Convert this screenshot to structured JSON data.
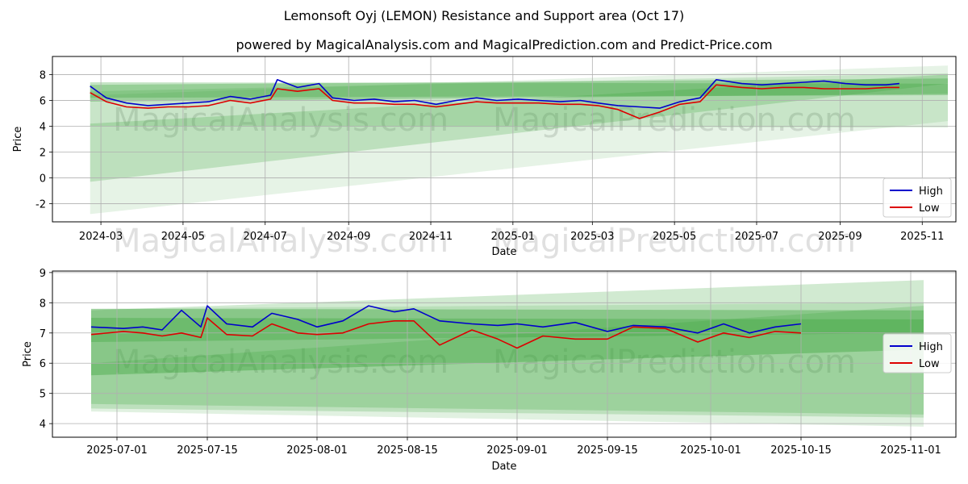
{
  "figure": {
    "title": "Lemonsoft Oyj (LEMON) Resistance and Support area (Oct 17)",
    "subtitle": "powered by MagicalAnalysis.com and MagicalPrediction.com and Predict-Price.com",
    "watermarks": [
      "MagicalAnalysis.com",
      "MagicalPrediction.com"
    ]
  },
  "colors": {
    "high": "#0000cc",
    "low": "#dd0000",
    "band": "#2e9e2e",
    "grid": "#b0b0b0"
  },
  "chart_data": [
    {
      "type": "line",
      "xlabel": "Date",
      "ylabel": "Price",
      "xlim": [
        "2024-01-25",
        "2025-11-26"
      ],
      "ylim": [
        -3.4,
        9.4
      ],
      "xticks": [
        "2024-03",
        "2024-05",
        "2024-07",
        "2024-09",
        "2024-11",
        "2025-01",
        "2025-03",
        "2025-05",
        "2025-07",
        "2025-09",
        "2025-11"
      ],
      "yticks": [
        -2,
        0,
        2,
        4,
        6,
        8
      ],
      "grid": true,
      "legend": {
        "position": "lower-right",
        "entries": [
          "High",
          "Low"
        ]
      },
      "series": [
        {
          "name": "High",
          "x": [
            "2024-02-22",
            "2024-03-05",
            "2024-03-20",
            "2024-04-05",
            "2024-04-20",
            "2024-05-05",
            "2024-05-20",
            "2024-06-05",
            "2024-06-20",
            "2024-07-05",
            "2024-07-10",
            "2024-07-25",
            "2024-08-10",
            "2024-08-20",
            "2024-09-05",
            "2024-09-20",
            "2024-10-05",
            "2024-10-20",
            "2024-11-05",
            "2024-11-20",
            "2024-12-05",
            "2024-12-20",
            "2025-01-05",
            "2025-01-20",
            "2025-02-05",
            "2025-02-20",
            "2025-03-05",
            "2025-03-20",
            "2025-04-05",
            "2025-04-20",
            "2025-05-05",
            "2025-05-20",
            "2025-06-01",
            "2025-06-20",
            "2025-07-05",
            "2025-07-20",
            "2025-08-05",
            "2025-08-20",
            "2025-09-05",
            "2025-09-20",
            "2025-10-05",
            "2025-10-15"
          ],
          "values": [
            7.1,
            6.2,
            5.8,
            5.6,
            5.7,
            5.8,
            5.9,
            6.3,
            6.1,
            6.4,
            7.6,
            7.0,
            7.3,
            6.2,
            6.0,
            6.1,
            5.9,
            6.0,
            5.7,
            6.0,
            6.2,
            6.0,
            6.1,
            6.0,
            5.9,
            6.0,
            5.8,
            5.6,
            5.5,
            5.4,
            5.9,
            6.2,
            7.6,
            7.3,
            7.2,
            7.3,
            7.4,
            7.5,
            7.3,
            7.2,
            7.2,
            7.3
          ]
        },
        {
          "name": "Low",
          "x": [
            "2024-02-22",
            "2024-03-05",
            "2024-03-20",
            "2024-04-05",
            "2024-04-20",
            "2024-05-05",
            "2024-05-20",
            "2024-06-05",
            "2024-06-20",
            "2024-07-05",
            "2024-07-10",
            "2024-07-25",
            "2024-08-10",
            "2024-08-20",
            "2024-09-05",
            "2024-09-20",
            "2024-10-05",
            "2024-10-20",
            "2024-11-05",
            "2024-11-20",
            "2024-12-05",
            "2024-12-20",
            "2025-01-05",
            "2025-01-20",
            "2025-02-05",
            "2025-02-20",
            "2025-03-05",
            "2025-03-20",
            "2025-04-05",
            "2025-04-20",
            "2025-05-05",
            "2025-05-20",
            "2025-06-01",
            "2025-06-20",
            "2025-07-05",
            "2025-07-20",
            "2025-08-05",
            "2025-08-20",
            "2025-09-05",
            "2025-09-20",
            "2025-10-05",
            "2025-10-15"
          ],
          "values": [
            6.6,
            5.9,
            5.5,
            5.4,
            5.5,
            5.5,
            5.6,
            6.0,
            5.8,
            6.1,
            6.9,
            6.7,
            6.9,
            6.0,
            5.8,
            5.8,
            5.7,
            5.7,
            5.5,
            5.7,
            5.9,
            5.8,
            5.8,
            5.8,
            5.7,
            5.7,
            5.6,
            5.3,
            4.6,
            5.1,
            5.7,
            5.9,
            7.2,
            7.0,
            6.9,
            7.0,
            7.0,
            6.9,
            6.9,
            6.9,
            7.0,
            7.0
          ]
        }
      ],
      "bands": [
        {
          "x": [
            "2024-02-22",
            "2025-11-20"
          ],
          "lower": [
            -0.3,
            7.3
          ],
          "upper": [
            4.2,
            8.0
          ],
          "opacity": 0.22
        },
        {
          "x": [
            "2024-02-22",
            "2025-11-20"
          ],
          "lower": [
            -2.8,
            4.4
          ],
          "upper": [
            6.4,
            8.7
          ],
          "opacity": 0.12
        },
        {
          "x": [
            "2024-02-22",
            "2025-11-20"
          ],
          "lower": [
            5.9,
            6.5
          ],
          "upper": [
            7.2,
            7.7
          ],
          "opacity": 0.3
        },
        {
          "x": [
            "2024-02-22",
            "2025-11-20"
          ],
          "lower": [
            6.2,
            6.4
          ],
          "upper": [
            7.4,
            7.3
          ],
          "opacity": 0.28
        },
        {
          "x": [
            "2024-02-22",
            "2025-11-20"
          ],
          "lower": [
            4.0,
            3.9
          ],
          "upper": [
            6.7,
            8.1
          ],
          "opacity": 0.16
        }
      ]
    },
    {
      "type": "line",
      "xlabel": "Date",
      "ylabel": "Price",
      "xlim": [
        "2025-06-21",
        "2025-11-08"
      ],
      "ylim": [
        3.55,
        9.05
      ],
      "xticks": [
        "2025-07-01",
        "2025-07-15",
        "2025-08-01",
        "2025-08-15",
        "2025-09-01",
        "2025-09-15",
        "2025-10-01",
        "2025-10-15",
        "2025-11-01"
      ],
      "yticks": [
        4,
        5,
        6,
        7,
        8,
        9
      ],
      "grid": true,
      "legend": {
        "position": "center-right",
        "entries": [
          "High",
          "Low"
        ]
      },
      "series": [
        {
          "name": "High",
          "x": [
            "2025-06-27",
            "2025-07-02",
            "2025-07-05",
            "2025-07-08",
            "2025-07-11",
            "2025-07-14",
            "2025-07-15",
            "2025-07-18",
            "2025-07-22",
            "2025-07-25",
            "2025-07-29",
            "2025-08-01",
            "2025-08-05",
            "2025-08-09",
            "2025-08-13",
            "2025-08-16",
            "2025-08-20",
            "2025-08-25",
            "2025-08-29",
            "2025-09-01",
            "2025-09-05",
            "2025-09-10",
            "2025-09-15",
            "2025-09-19",
            "2025-09-24",
            "2025-09-29",
            "2025-10-03",
            "2025-10-07",
            "2025-10-11",
            "2025-10-15"
          ],
          "values": [
            7.2,
            7.15,
            7.2,
            7.1,
            7.75,
            7.2,
            7.9,
            7.3,
            7.2,
            7.65,
            7.45,
            7.2,
            7.4,
            7.9,
            7.7,
            7.8,
            7.4,
            7.3,
            7.25,
            7.3,
            7.2,
            7.35,
            7.05,
            7.25,
            7.2,
            7.0,
            7.3,
            7.0,
            7.2,
            7.3
          ]
        },
        {
          "name": "Low",
          "x": [
            "2025-06-27",
            "2025-07-02",
            "2025-07-05",
            "2025-07-08",
            "2025-07-11",
            "2025-07-14",
            "2025-07-15",
            "2025-07-18",
            "2025-07-22",
            "2025-07-25",
            "2025-07-29",
            "2025-08-01",
            "2025-08-05",
            "2025-08-09",
            "2025-08-13",
            "2025-08-16",
            "2025-08-20",
            "2025-08-25",
            "2025-08-29",
            "2025-09-01",
            "2025-09-05",
            "2025-09-10",
            "2025-09-15",
            "2025-09-19",
            "2025-09-24",
            "2025-09-29",
            "2025-10-03",
            "2025-10-07",
            "2025-10-11",
            "2025-10-15"
          ],
          "values": [
            6.95,
            7.05,
            7.0,
            6.9,
            7.0,
            6.85,
            7.5,
            6.95,
            6.9,
            7.3,
            7.0,
            6.95,
            7.0,
            7.3,
            7.4,
            7.4,
            6.6,
            7.1,
            6.8,
            6.5,
            6.9,
            6.8,
            6.8,
            7.2,
            7.15,
            6.7,
            7.0,
            6.85,
            7.05,
            7.0
          ]
        }
      ],
      "bands": [
        {
          "x": [
            "2025-06-27",
            "2025-11-03"
          ],
          "lower": [
            5.6,
            6.45
          ],
          "upper": [
            7.8,
            7.75
          ],
          "opacity": 0.35
        },
        {
          "x": [
            "2025-06-27",
            "2025-11-03"
          ],
          "lower": [
            6.7,
            7.0
          ],
          "upper": [
            7.5,
            7.45
          ],
          "opacity": 0.3
        },
        {
          "x": [
            "2025-06-27",
            "2025-11-03"
          ],
          "lower": [
            4.65,
            4.3
          ],
          "upper": [
            7.75,
            8.75
          ],
          "opacity": 0.22
        },
        {
          "x": [
            "2025-06-27",
            "2025-11-03"
          ],
          "lower": [
            4.4,
            3.9
          ],
          "upper": [
            7.8,
            8.0
          ],
          "opacity": 0.14
        },
        {
          "x": [
            "2025-06-27",
            "2025-11-03"
          ],
          "lower": [
            4.5,
            4.2
          ],
          "upper": [
            6.0,
            7.9
          ],
          "opacity": 0.2
        }
      ]
    }
  ]
}
